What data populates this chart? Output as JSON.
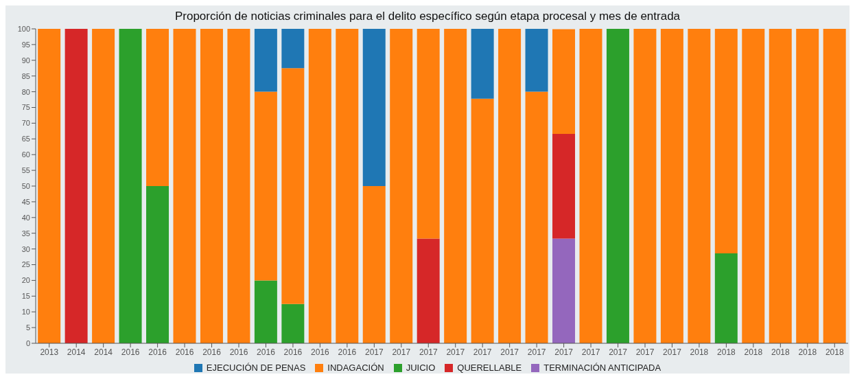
{
  "chart_data": {
    "type": "bar",
    "title": "Proporción de noticias criminales para el delito específico según etapa procesal y mes de entrada",
    "stacked": true,
    "categories": [
      "2013",
      "2014",
      "2014",
      "2016",
      "2016",
      "2016",
      "2016",
      "2016",
      "2016",
      "2016",
      "2016",
      "2016",
      "2017",
      "2017",
      "2017",
      "2017",
      "2017",
      "2017",
      "2017",
      "2017",
      "2017",
      "2017",
      "2017",
      "2017",
      "2018",
      "2018",
      "2018",
      "2018",
      "2018",
      "2018"
    ],
    "series": [
      {
        "name": "TERMINACIÓN ANTICIPADA",
        "color": "#9467bd",
        "values": [
          null,
          null,
          null,
          null,
          null,
          null,
          null,
          null,
          null,
          null,
          null,
          null,
          null,
          null,
          null,
          null,
          null,
          null,
          null,
          33.3,
          null,
          null,
          null,
          null,
          null,
          null,
          null,
          null,
          null,
          null
        ]
      },
      {
        "name": "QUERELLABLE",
        "color": "#d62728",
        "values": [
          null,
          100,
          null,
          null,
          null,
          null,
          null,
          null,
          null,
          null,
          null,
          null,
          null,
          null,
          33.3,
          null,
          null,
          null,
          null,
          33.3,
          null,
          null,
          null,
          null,
          null,
          null,
          null,
          null,
          null,
          null
        ]
      },
      {
        "name": "JUICIO",
        "color": "#2ca02c",
        "values": [
          null,
          null,
          null,
          100,
          50,
          null,
          null,
          null,
          20,
          12.5,
          null,
          null,
          null,
          null,
          null,
          null,
          null,
          null,
          null,
          null,
          null,
          100,
          null,
          null,
          null,
          28.6,
          null,
          null,
          null,
          null
        ]
      },
      {
        "name": "INDAGACIÓN",
        "color": "#ff7f0e",
        "values": [
          100,
          null,
          100,
          null,
          50,
          100,
          100,
          100,
          60,
          75,
          100,
          100,
          50,
          100,
          66.7,
          100,
          77.8,
          100,
          80,
          33.3,
          100,
          null,
          100,
          100,
          100,
          71.4,
          100,
          100,
          100,
          100
        ]
      },
      {
        "name": "EJECUCIÓN DE PENAS",
        "color": "#1f77b4",
        "values": [
          null,
          null,
          null,
          null,
          null,
          null,
          null,
          null,
          20,
          12.5,
          null,
          null,
          50,
          null,
          null,
          null,
          22.2,
          null,
          20,
          null,
          null,
          null,
          null,
          null,
          null,
          null,
          null,
          null,
          null,
          null
        ]
      }
    ],
    "ylim": [
      0,
      100
    ],
    "yticks": [
      0,
      5,
      10,
      15,
      20,
      25,
      30,
      35,
      40,
      45,
      50,
      55,
      60,
      65,
      70,
      75,
      80,
      85,
      90,
      95,
      100
    ],
    "grid": false,
    "legend": "bottom"
  }
}
